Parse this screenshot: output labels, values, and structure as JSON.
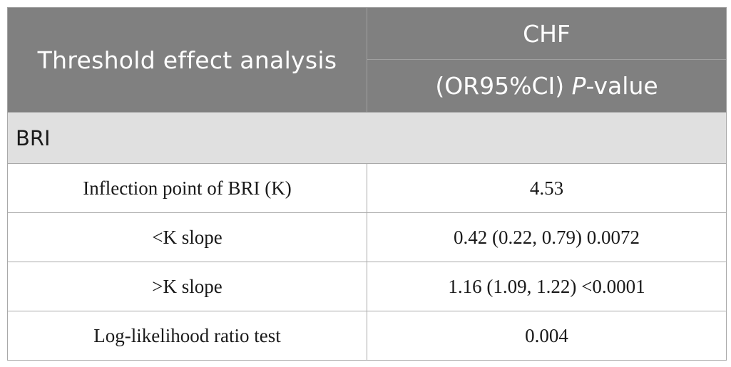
{
  "table": {
    "header": {
      "col1": "Threshold effect analysis",
      "col2_top": "CHF",
      "col2_bottom_prefix": "(OR95%CI) ",
      "col2_bottom_italic": "P",
      "col2_bottom_suffix": "-value"
    },
    "section_label": "BRI",
    "rows": [
      {
        "label": "Inflection point of BRI (K)",
        "value": "4.53"
      },
      {
        "label": "<K slope",
        "value": "0.42 (0.22, 0.79) 0.0072"
      },
      {
        "label": ">K slope",
        "value": "1.16 (1.09, 1.22) <0.0001"
      },
      {
        "label": "Log-likelihood ratio test",
        "value": "0.004"
      }
    ]
  }
}
